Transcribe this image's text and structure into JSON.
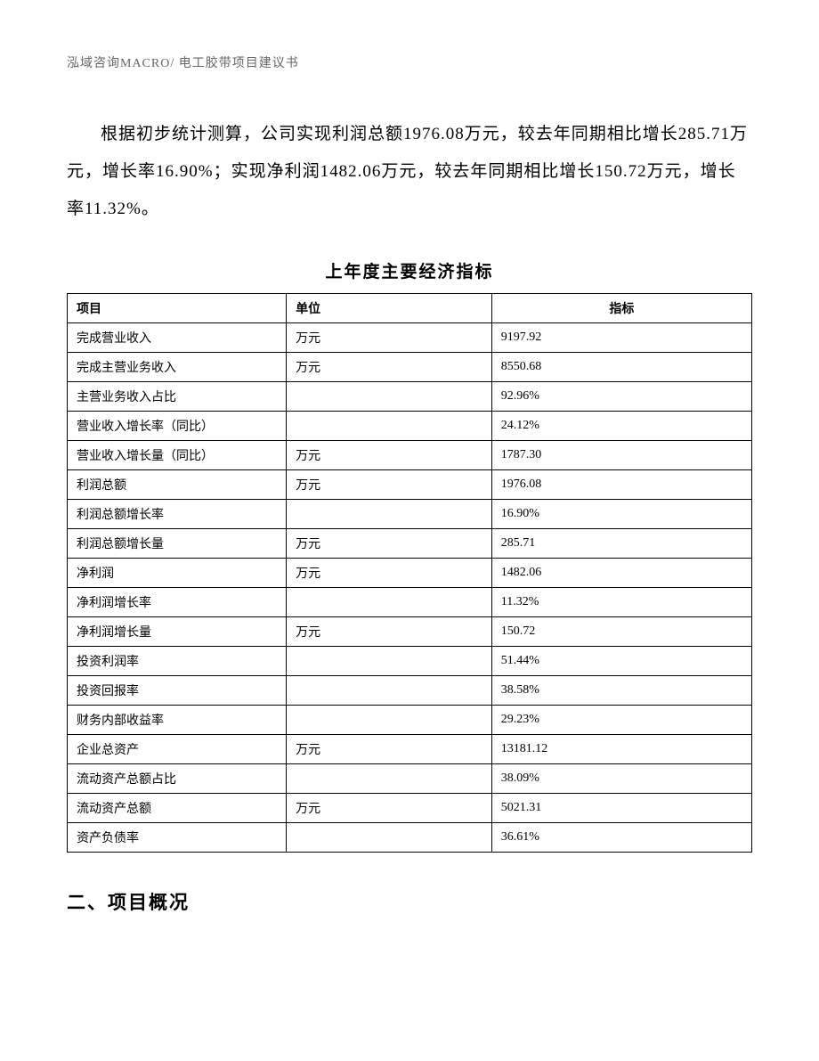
{
  "header": "泓域咨询MACRO/ 电工胶带项目建议书",
  "paragraph": "根据初步统计测算，公司实现利润总额1976.08万元，较去年同期相比增长285.71万元，增长率16.90%；实现净利润1482.06万元，较去年同期相比增长150.72万元，增长率11.32%。",
  "table": {
    "title": "上年度主要经济指标",
    "columns": [
      "项目",
      "单位",
      "指标"
    ],
    "rows": [
      {
        "c1": "完成营业收入",
        "c2": "万元",
        "c3": "9197.92"
      },
      {
        "c1": "完成主营业务收入",
        "c2": "万元",
        "c3": "8550.68"
      },
      {
        "c1": "主营业务收入占比",
        "c2": "",
        "c3": "92.96%"
      },
      {
        "c1": "营业收入增长率（同比）",
        "c2": "",
        "c3": "24.12%"
      },
      {
        "c1": "营业收入增长量（同比）",
        "c2": "万元",
        "c3": "1787.30"
      },
      {
        "c1": "利润总额",
        "c2": "万元",
        "c3": "1976.08"
      },
      {
        "c1": "利润总额增长率",
        "c2": "",
        "c3": "16.90%"
      },
      {
        "c1": "利润总额增长量",
        "c2": "万元",
        "c3": "285.71"
      },
      {
        "c1": "净利润",
        "c2": "万元",
        "c3": "1482.06"
      },
      {
        "c1": "净利润增长率",
        "c2": "",
        "c3": "11.32%"
      },
      {
        "c1": "净利润增长量",
        "c2": "万元",
        "c3": "150.72"
      },
      {
        "c1": "投资利润率",
        "c2": "",
        "c3": "51.44%"
      },
      {
        "c1": "投资回报率",
        "c2": "",
        "c3": "38.58%"
      },
      {
        "c1": "财务内部收益率",
        "c2": "",
        "c3": "29.23%"
      },
      {
        "c1": "企业总资产",
        "c2": "万元",
        "c3": "13181.12"
      },
      {
        "c1": "流动资产总额占比",
        "c2": "",
        "c3": "38.09%"
      },
      {
        "c1": "流动资产总额",
        "c2": "万元",
        "c3": "5021.31"
      },
      {
        "c1": "资产负债率",
        "c2": "",
        "c3": "36.61%"
      }
    ]
  },
  "section_heading": "二、项目概况"
}
